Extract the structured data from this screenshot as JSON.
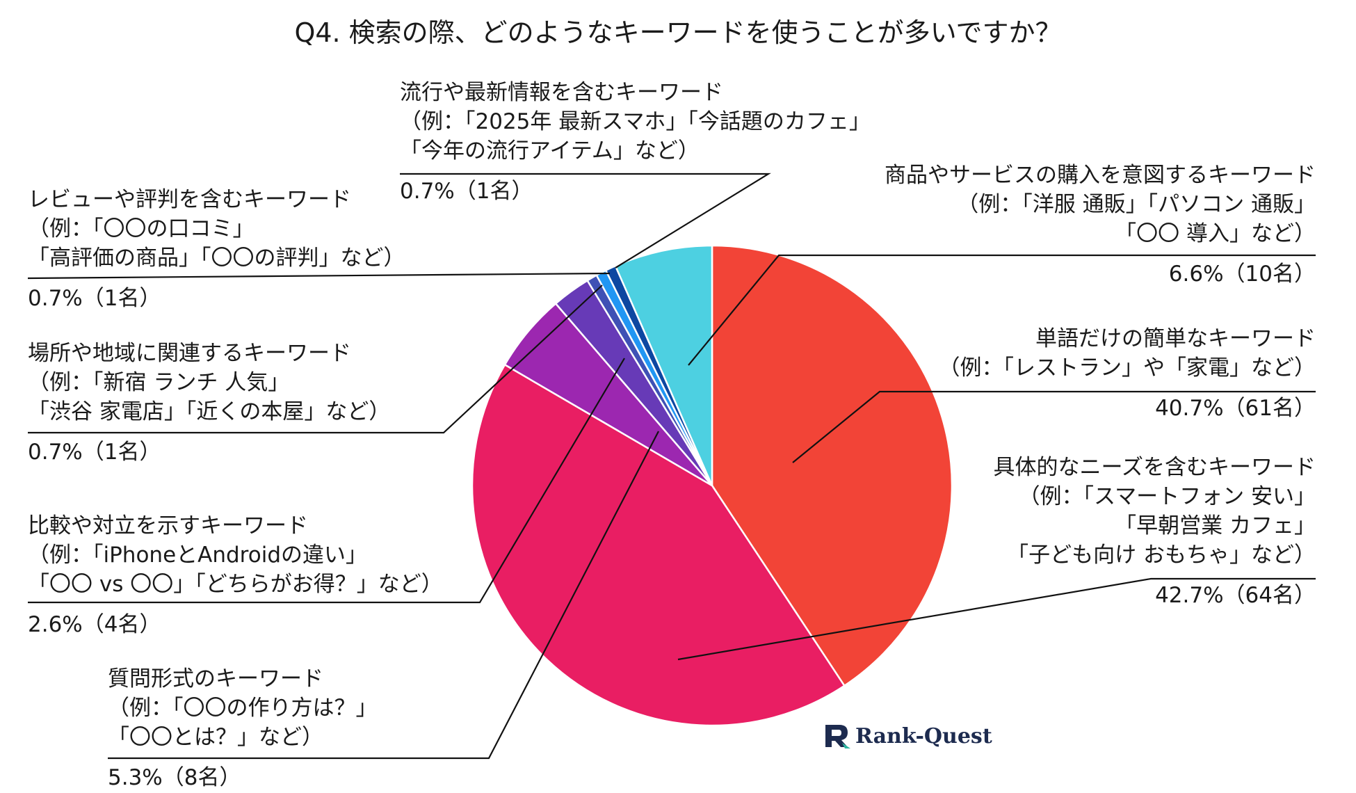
{
  "chart_data": {
    "type": "pie",
    "title": "Q4. 検索の際、どのようなキーワードを使うことが多いですか？",
    "slices": [
      {
        "lines": [
          "単語だけの簡単なキーワード",
          "（例：「レストラン」や「家電」など）"
        ],
        "pct_label": "40.7%（61名）",
        "value": 40.7,
        "count": 61,
        "color": "#f24437"
      },
      {
        "lines": [
          "具体的なニーズを含むキーワード",
          "（例：「スマートフォン 安い」",
          "「早朝営業 カフェ」",
          "「子ども向け おもちゃ」など）"
        ],
        "pct_label": "42.7%（64名）",
        "value": 42.7,
        "count": 64,
        "color": "#e91e63"
      },
      {
        "lines": [
          "質問形式のキーワード",
          "（例：「〇〇の作り方は？」",
          "「〇〇とは？」など）"
        ],
        "pct_label": "5.3%（8名）",
        "value": 5.3,
        "count": 8,
        "color": "#9c27b0"
      },
      {
        "lines": [
          "比較や対立を示すキーワード",
          "（例：「iPhoneとAndroidの違い」",
          "「〇〇 vs 〇〇」「どちらがお得？」など）"
        ],
        "pct_label": "2.6%（4名）",
        "value": 2.6,
        "count": 4,
        "color": "#673ab7"
      },
      {
        "lines": [
          "場所や地域に関連するキーワード",
          "（例：「新宿 ランチ 人気」",
          "「渋谷 家電店」「近くの本屋」など）"
        ],
        "pct_label": "0.7%（1名）",
        "value": 0.7,
        "count": 1,
        "color": "#3f51b5"
      },
      {
        "lines": [
          "レビューや評判を含むキーワード",
          "（例：「〇〇の口コミ」",
          "「高評価の商品」「〇〇の評判」など）"
        ],
        "pct_label": "0.7%（1名）",
        "value": 0.7,
        "count": 1,
        "color": "#2196f3"
      },
      {
        "lines": [
          "流行や最新情報を含むキーワード",
          "（例：「2025年 最新スマホ」「今話題のカフェ」",
          "「今年の流行アイテム」など）"
        ],
        "pct_label": "0.7%（1名）",
        "value": 0.7,
        "count": 1,
        "color": "#0d47a1"
      },
      {
        "lines": [
          "商品やサービスの購入を意図するキーワード",
          "（例：「洋服 通販」「パソコン 通販」",
          "「〇〇 導入」など）"
        ],
        "pct_label": "6.6%（10名）",
        "value": 6.6,
        "count": 10,
        "color": "#4dd0e1"
      }
    ]
  },
  "brand": {
    "name": "Rank-Quest",
    "icon": "rank-quest-logo-icon",
    "color": "#1d2b4f"
  }
}
